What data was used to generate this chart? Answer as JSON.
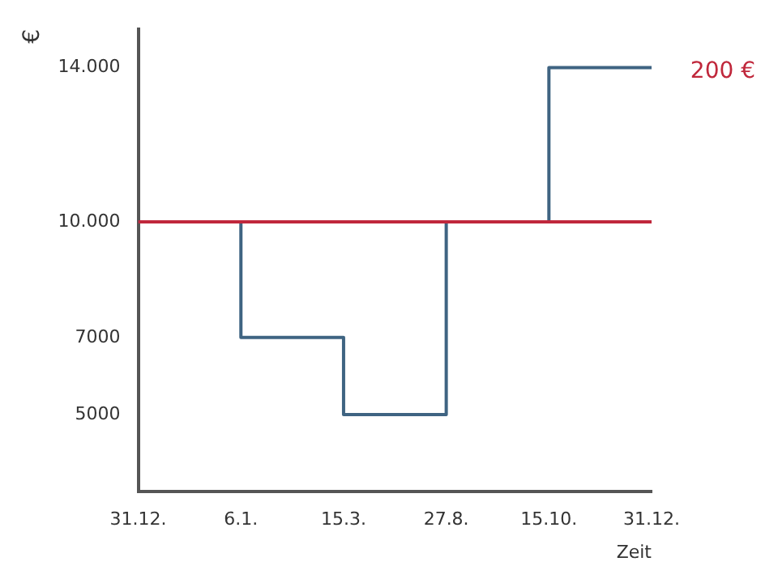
{
  "chart_data": {
    "type": "step",
    "xlabel": "Zeit",
    "ylabel": "€",
    "categories": [
      "31.12.",
      "6.1.",
      "15.3.",
      "27.8.",
      "15.10.",
      "31.12."
    ],
    "series": [
      {
        "color": "#3f6482",
        "values": [
          10000,
          7000,
          5000,
          10000,
          14000,
          14000
        ]
      }
    ],
    "ylim": [
      3000,
      15000
    ],
    "yticks": [
      5000,
      7000,
      {
        "value": 10000,
        "label": "10.000"
      },
      {
        "value": 14000,
        "label": "14.000"
      }
    ],
    "ref_lines": [
      {
        "axis": "y",
        "value": 10000,
        "color": "#c0283c"
      }
    ],
    "annotations": [
      "200 €"
    ],
    "grid": false,
    "legend": false
  }
}
